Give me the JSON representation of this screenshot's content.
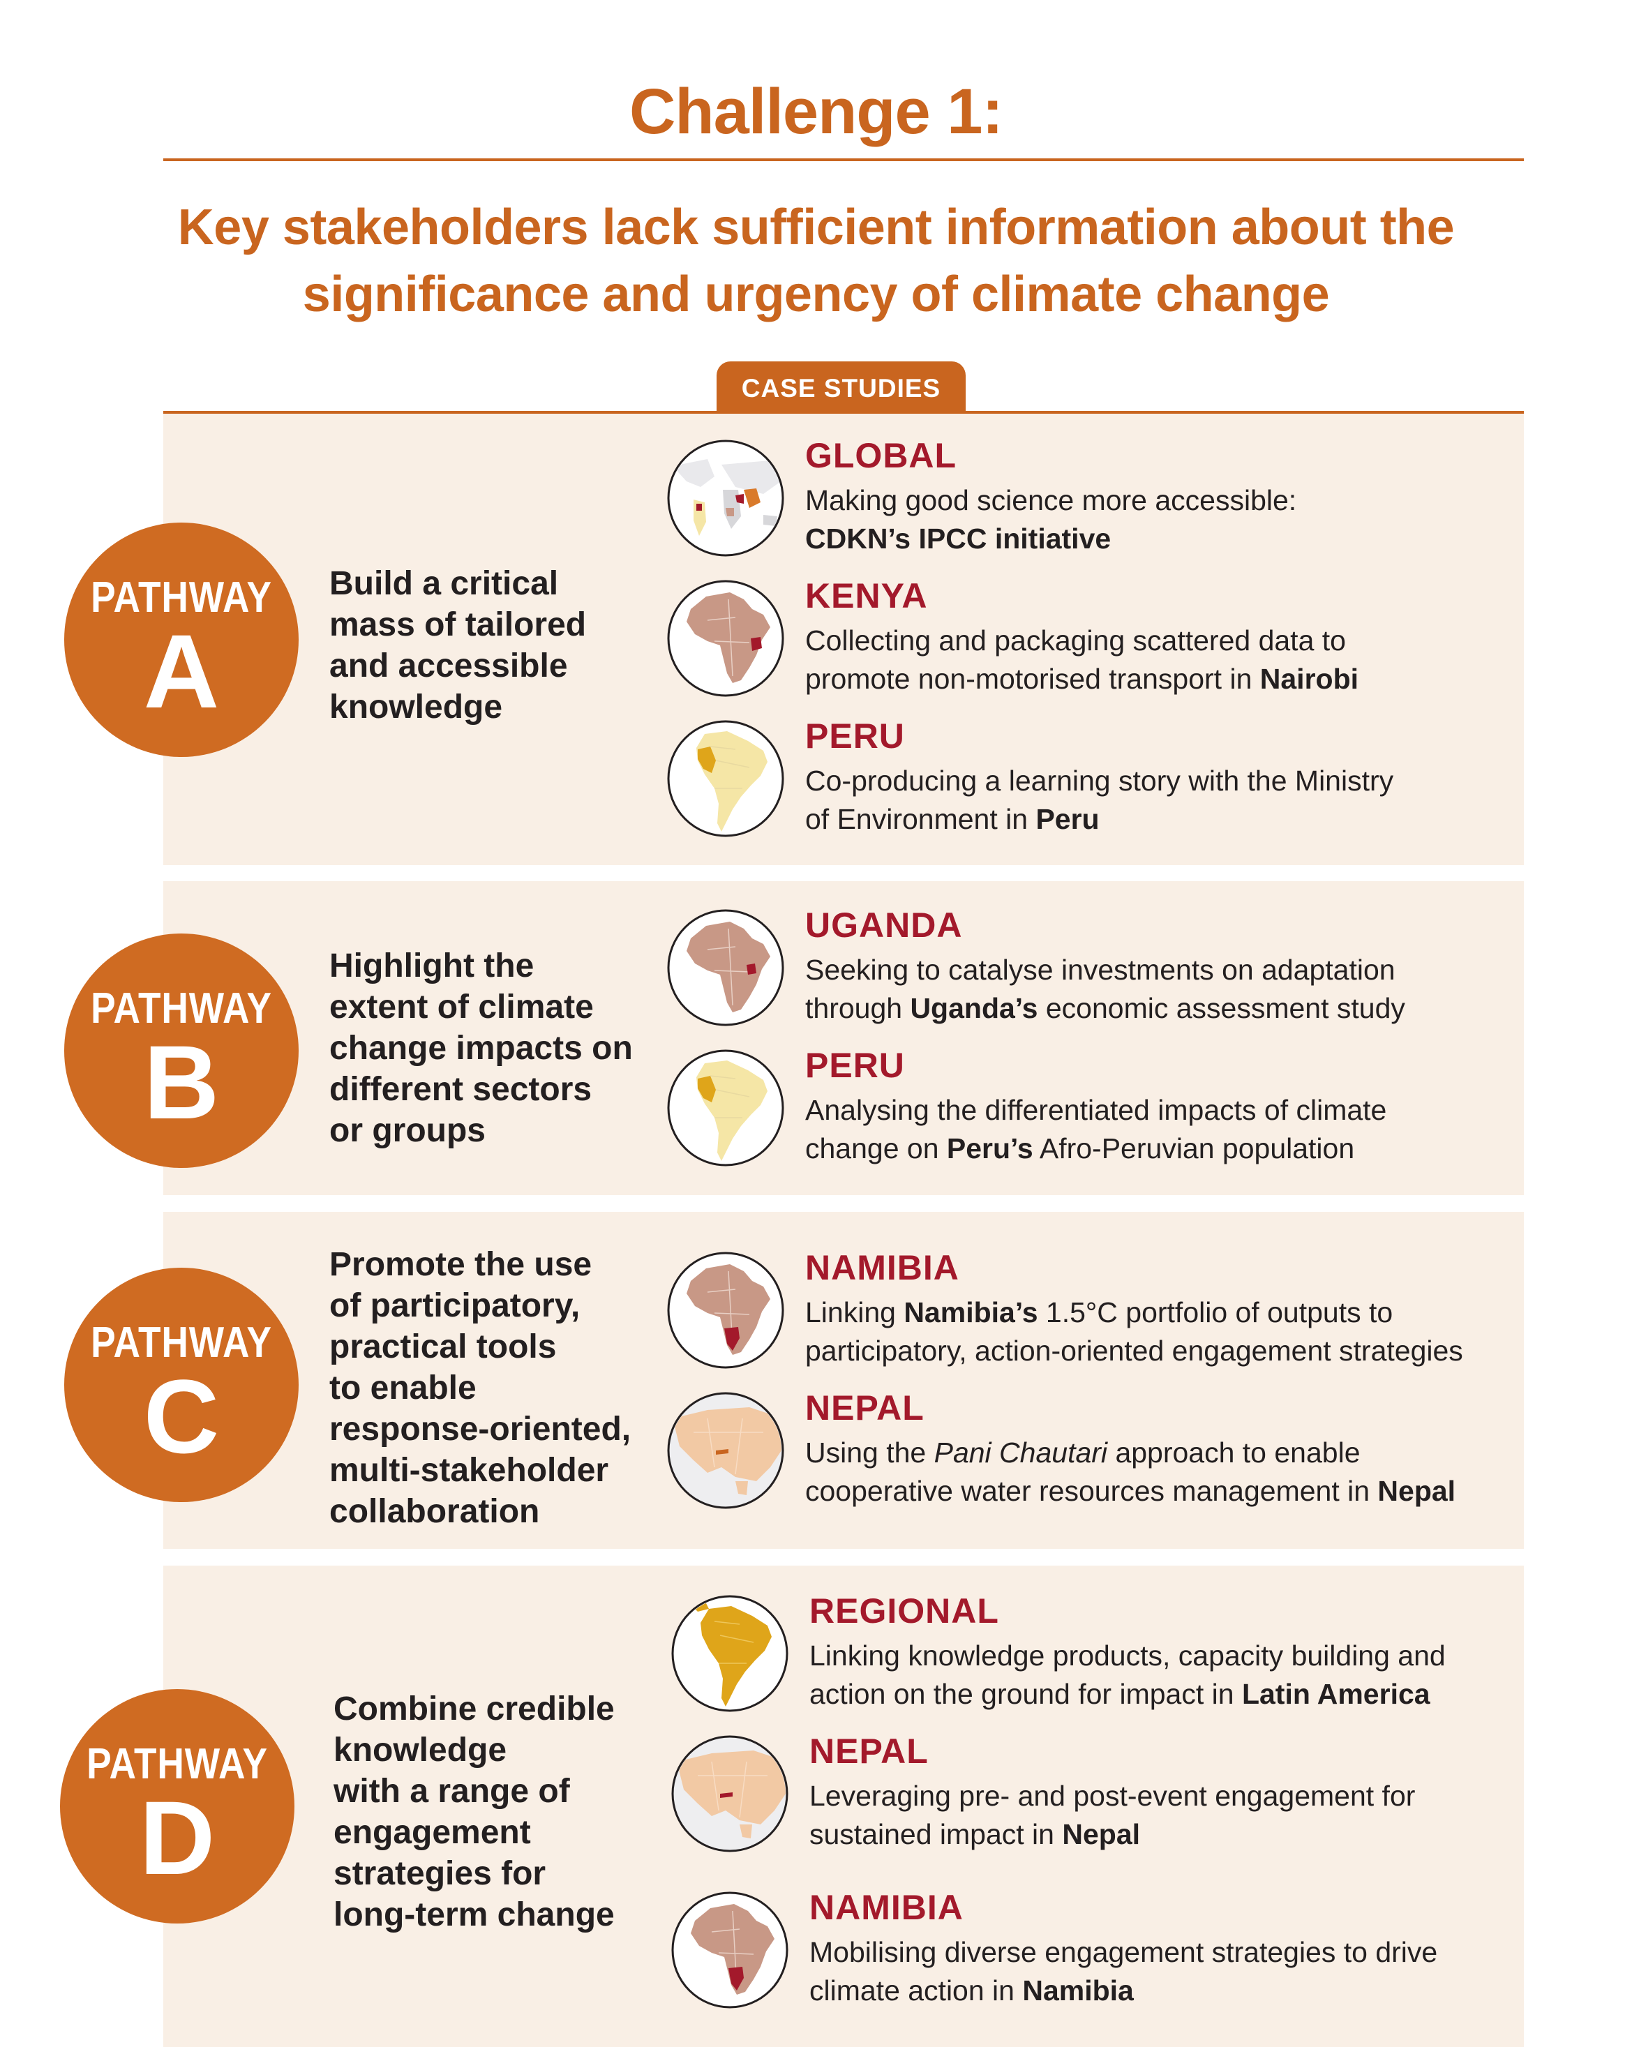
{
  "header": {
    "title": "Challenge 1:",
    "subtitle_line1": "Key stakeholders lack sufficient information about the",
    "subtitle_line2": "significance and urgency of climate change",
    "tab_label": "CASE STUDIES"
  },
  "colors": {
    "accent": "#c9651f",
    "badge": "#cf6b22",
    "panel_bg": "#f9efe5",
    "country_red": "#a3192b",
    "map_brown": "#c89886",
    "map_yellow": "#f5e6a6",
    "map_gold": "#dfa51a",
    "map_peach": "#f2c9a4"
  },
  "pathways": [
    {
      "label": "PATHWAY",
      "letter": "A",
      "text": [
        "Build a critical",
        "mass of tailored",
        "and accessible",
        "knowledge"
      ],
      "cases": [
        {
          "country": "GLOBAL",
          "map": "world-map-icon",
          "line1": [
            {
              "t": "Making good science more accessible:"
            }
          ],
          "line2": [
            {
              "t": "CDKN’s IPCC initiative",
              "b": true
            }
          ]
        },
        {
          "country": "KENYA",
          "map": "africa-kenya-map-icon",
          "line1": [
            {
              "t": "Collecting and packaging scattered data to"
            }
          ],
          "line2": [
            {
              "t": "promote non-motorised transport in "
            },
            {
              "t": "Nairobi",
              "b": true
            }
          ]
        },
        {
          "country": "PERU",
          "map": "south-america-peru-map-icon",
          "line1": [
            {
              "t": "Co-producing a learning story with the Ministry"
            }
          ],
          "line2": [
            {
              "t": "of Environment in "
            },
            {
              "t": "Peru",
              "b": true
            }
          ]
        }
      ]
    },
    {
      "label": "PATHWAY",
      "letter": "B",
      "text": [
        "Highlight the",
        "extent of climate",
        "change impacts on",
        "different sectors",
        "or groups"
      ],
      "cases": [
        {
          "country": "UGANDA",
          "map": "africa-uganda-map-icon",
          "line1": [
            {
              "t": "Seeking to catalyse investments on adaptation"
            }
          ],
          "line2": [
            {
              "t": "through "
            },
            {
              "t": "Uganda’s",
              "b": true
            },
            {
              "t": " economic assessment study"
            }
          ]
        },
        {
          "country": "PERU",
          "map": "south-america-peru-map-icon",
          "line1": [
            {
              "t": "Analysing the differentiated impacts of climate"
            }
          ],
          "line2": [
            {
              "t": "change on "
            },
            {
              "t": "Peru’s",
              "b": true
            },
            {
              "t": " Afro-Peruvian population"
            }
          ]
        }
      ]
    },
    {
      "label": "PATHWAY",
      "letter": "C",
      "text": [
        "Promote the use",
        "of participatory,",
        "practical tools",
        "to enable",
        "response-oriented,",
        "multi-stakeholder",
        "collaboration"
      ],
      "cases": [
        {
          "country": "NAMIBIA",
          "map": "africa-namibia-map-icon",
          "line1": [
            {
              "t": "Linking "
            },
            {
              "t": "Namibia’s",
              "b": true
            },
            {
              "t": " 1.5°C portfolio of outputs to"
            }
          ],
          "line2": [
            {
              "t": "participatory, action-oriented engagement strategies"
            }
          ]
        },
        {
          "country": "NEPAL",
          "map": "asia-nepal-map-icon",
          "line1": [
            {
              "t": "Using the "
            },
            {
              "t": "Pani Chautari",
              "i": true
            },
            {
              "t": " approach to enable"
            }
          ],
          "line2": [
            {
              "t": "cooperative water resources management in "
            },
            {
              "t": "Nepal",
              "b": true
            }
          ]
        }
      ]
    },
    {
      "label": "PATHWAY",
      "letter": "D",
      "text": [
        "Combine credible",
        "knowledge",
        "with a range of",
        "engagement",
        "strategies for",
        "long-term change"
      ],
      "cases": [
        {
          "country": "REGIONAL",
          "map": "latin-america-map-icon",
          "line1": [
            {
              "t": "Linking knowledge products, capacity building and"
            }
          ],
          "line2": [
            {
              "t": "action on the ground for impact in "
            },
            {
              "t": "Latin America",
              "b": true
            }
          ]
        },
        {
          "country": "NEPAL",
          "map": "asia-nepal-map-icon",
          "line1": [
            {
              "t": "Leveraging pre- and post-event engagement for"
            }
          ],
          "line2": [
            {
              "t": "sustained impact in "
            },
            {
              "t": "Nepal",
              "b": true
            }
          ]
        },
        {
          "country": "NAMIBIA",
          "map": "africa-namibia-map-icon",
          "line1": [
            {
              "t": "Mobilising diverse engagement strategies to drive"
            }
          ],
          "line2": [
            {
              "t": "climate action in "
            },
            {
              "t": "Namibia",
              "b": true
            }
          ]
        }
      ]
    }
  ]
}
